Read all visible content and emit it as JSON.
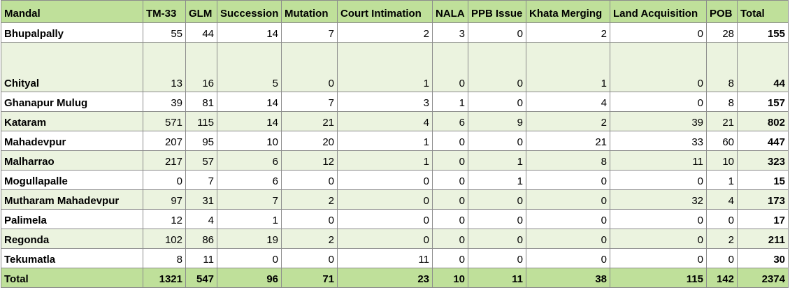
{
  "table": {
    "headers": [
      "Mandal",
      "TM-33",
      "GLM",
      "Succession",
      "Mutation",
      "Court Intimation",
      "NALA",
      "PPB Issue",
      "Khata Merging",
      "Land Acquisition",
      "POB",
      "Total"
    ],
    "rows": [
      [
        "Bhupalpally",
        "55",
        "44",
        "14",
        "7",
        "2",
        "3",
        "0",
        "2",
        "0",
        "28",
        "155"
      ],
      [
        "Chityal",
        "13",
        "16",
        "5",
        "0",
        "1",
        "0",
        "0",
        "1",
        "0",
        "8",
        "44"
      ],
      [
        "Ghanapur Mulug",
        "39",
        "81",
        "14",
        "7",
        "3",
        "1",
        "0",
        "4",
        "0",
        "8",
        "157"
      ],
      [
        "Kataram",
        "571",
        "115",
        "14",
        "21",
        "4",
        "6",
        "9",
        "2",
        "39",
        "21",
        "802"
      ],
      [
        "Mahadevpur",
        "207",
        "95",
        "10",
        "20",
        "1",
        "0",
        "0",
        "21",
        "33",
        "60",
        "447"
      ],
      [
        "Malharrao",
        "217",
        "57",
        "6",
        "12",
        "1",
        "0",
        "1",
        "8",
        "11",
        "10",
        "323"
      ],
      [
        "Mogullapalle",
        "0",
        "7",
        "6",
        "0",
        "0",
        "0",
        "1",
        "0",
        "0",
        "1",
        "15"
      ],
      [
        "Mutharam Mahadevpur",
        "97",
        "31",
        "7",
        "2",
        "0",
        "0",
        "0",
        "0",
        "32",
        "4",
        "173"
      ],
      [
        "Palimela",
        "12",
        "4",
        "1",
        "0",
        "0",
        "0",
        "0",
        "0",
        "0",
        "0",
        "17"
      ],
      [
        "Regonda",
        "102",
        "86",
        "19",
        "2",
        "0",
        "0",
        "0",
        "0",
        "0",
        "2",
        "211"
      ],
      [
        "Tekumatla",
        "8",
        "11",
        "0",
        "0",
        "11",
        "0",
        "0",
        "0",
        "0",
        "0",
        "30"
      ]
    ],
    "total_row": [
      "Total",
      "1321",
      "547",
      "96",
      "71",
      "23",
      "10",
      "11",
      "38",
      "115",
      "142",
      "2374"
    ]
  },
  "colors": {
    "header_bg": "#bfe09a",
    "alt_row_bg": "#ebf3df",
    "border": "#8c8c8c"
  }
}
